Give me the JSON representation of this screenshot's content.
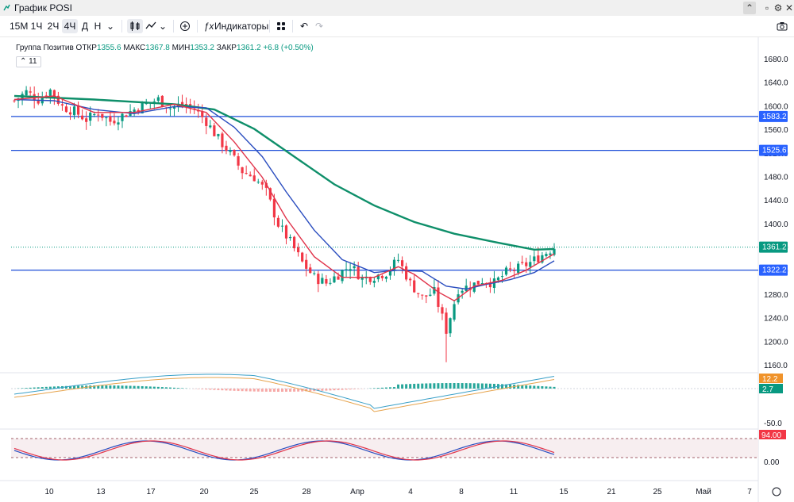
{
  "window": {
    "title": "График POSI"
  },
  "toolbar": {
    "intervals": [
      "15М",
      "1Ч",
      "2Ч",
      "4Ч",
      "Д",
      "Н"
    ],
    "selected_interval": "4Ч",
    "indicators_label": "Индикаторы"
  },
  "legend": {
    "name": "Группа Позитив",
    "open_label": "ОТКР",
    "open": "1355.6",
    "high_label": "МАКС",
    "high": "1367.8",
    "low_label": "МИН",
    "low": "1353.2",
    "close_label": "ЗАКР",
    "close": "1361.2",
    "change": "+6.8 (+0.50%)",
    "ma_badge": "11"
  },
  "colors": {
    "up": "#089981",
    "down": "#f23645",
    "line": "#1e4fd8",
    "ma_long": "#0f8f6a",
    "ma_fast": "#e0334a",
    "ma_mid": "#2a4dbf",
    "price_tag": "#089981",
    "level_tag": "#2962ff"
  },
  "chart_data": [
    {
      "type": "candlestick",
      "symbol": "POSI",
      "interval": "4Ч",
      "ylim": [
        1140,
        1700
      ],
      "y_ticks": [
        1160,
        1200,
        1240,
        1280,
        1320,
        1360,
        1400,
        1440,
        1480,
        1520,
        1560,
        1600,
        1640,
        1680
      ],
      "y_tick_labels": [
        "1160.0",
        "1200.0",
        "1240.0",
        "1280.0",
        "1320.0",
        "1360.0",
        "1400.0",
        "1440.0",
        "1480.0",
        "1520.0",
        "1560.0",
        "1600.0",
        "1640.0",
        "1680.0"
      ],
      "x_labels": [
        "10",
        "13",
        "17",
        "20",
        "25",
        "28",
        "Апр",
        "4",
        "8",
        "11",
        "15",
        "21",
        "25",
        "Май",
        "7"
      ],
      "horizontal_levels": [
        {
          "value": 1583.2,
          "label": "1583.2"
        },
        {
          "value": 1525.6,
          "label": "1525.6"
        },
        {
          "value": 1322.2,
          "label": "1322.2"
        }
      ],
      "last_price": {
        "value": 1361.2,
        "label": "1361.2"
      },
      "close_path": [
        {
          "x": 0,
          "y": 1610
        },
        {
          "x": 3,
          "y": 1625
        },
        {
          "x": 6,
          "y": 1612
        },
        {
          "x": 9,
          "y": 1628
        },
        {
          "x": 12,
          "y": 1600
        },
        {
          "x": 15,
          "y": 1592
        },
        {
          "x": 18,
          "y": 1578
        },
        {
          "x": 21,
          "y": 1590
        },
        {
          "x": 24,
          "y": 1575
        },
        {
          "x": 27,
          "y": 1585
        },
        {
          "x": 30,
          "y": 1595
        },
        {
          "x": 33,
          "y": 1605
        },
        {
          "x": 36,
          "y": 1612
        },
        {
          "x": 39,
          "y": 1598
        },
        {
          "x": 42,
          "y": 1604
        },
        {
          "x": 45,
          "y": 1596
        },
        {
          "x": 48,
          "y": 1575
        },
        {
          "x": 51,
          "y": 1545
        },
        {
          "x": 54,
          "y": 1520
        },
        {
          "x": 57,
          "y": 1490
        },
        {
          "x": 60,
          "y": 1480
        },
        {
          "x": 63,
          "y": 1455
        },
        {
          "x": 66,
          "y": 1400
        },
        {
          "x": 69,
          "y": 1370
        },
        {
          "x": 72,
          "y": 1335
        },
        {
          "x": 75,
          "y": 1310
        },
        {
          "x": 78,
          "y": 1300
        },
        {
          "x": 81,
          "y": 1315
        },
        {
          "x": 84,
          "y": 1330
        },
        {
          "x": 87,
          "y": 1308
        },
        {
          "x": 90,
          "y": 1312
        },
        {
          "x": 93,
          "y": 1318
        },
        {
          "x": 96,
          "y": 1340
        },
        {
          "x": 99,
          "y": 1300
        },
        {
          "x": 102,
          "y": 1275
        },
        {
          "x": 105,
          "y": 1285
        },
        {
          "x": 108,
          "y": 1220
        },
        {
          "x": 111,
          "y": 1290
        },
        {
          "x": 114,
          "y": 1295
        },
        {
          "x": 117,
          "y": 1305
        },
        {
          "x": 120,
          "y": 1300
        },
        {
          "x": 123,
          "y": 1318
        },
        {
          "x": 126,
          "y": 1325
        },
        {
          "x": 129,
          "y": 1335
        },
        {
          "x": 132,
          "y": 1348
        },
        {
          "x": 135,
          "y": 1361.2
        }
      ],
      "ma_long": [
        {
          "x": 0,
          "y": 1618
        },
        {
          "x": 20,
          "y": 1612
        },
        {
          "x": 40,
          "y": 1604
        },
        {
          "x": 50,
          "y": 1595
        },
        {
          "x": 60,
          "y": 1562
        },
        {
          "x": 70,
          "y": 1515
        },
        {
          "x": 80,
          "y": 1468
        },
        {
          "x": 90,
          "y": 1432
        },
        {
          "x": 100,
          "y": 1404
        },
        {
          "x": 110,
          "y": 1384
        },
        {
          "x": 120,
          "y": 1370
        },
        {
          "x": 130,
          "y": 1357
        },
        {
          "x": 135,
          "y": 1358
        }
      ],
      "ma_fast": [
        {
          "x": 0,
          "y": 1612
        },
        {
          "x": 10,
          "y": 1618
        },
        {
          "x": 20,
          "y": 1590
        },
        {
          "x": 30,
          "y": 1590
        },
        {
          "x": 40,
          "y": 1604
        },
        {
          "x": 48,
          "y": 1590
        },
        {
          "x": 55,
          "y": 1540
        },
        {
          "x": 62,
          "y": 1480
        },
        {
          "x": 68,
          "y": 1410
        },
        {
          "x": 75,
          "y": 1345
        },
        {
          "x": 82,
          "y": 1310
        },
        {
          "x": 90,
          "y": 1310
        },
        {
          "x": 96,
          "y": 1328
        },
        {
          "x": 100,
          "y": 1315
        },
        {
          "x": 106,
          "y": 1285
        },
        {
          "x": 110,
          "y": 1270
        },
        {
          "x": 115,
          "y": 1295
        },
        {
          "x": 122,
          "y": 1305
        },
        {
          "x": 128,
          "y": 1322
        },
        {
          "x": 135,
          "y": 1350
        }
      ],
      "ma_mid": [
        {
          "x": 0,
          "y": 1612
        },
        {
          "x": 10,
          "y": 1610
        },
        {
          "x": 20,
          "y": 1595
        },
        {
          "x": 30,
          "y": 1588
        },
        {
          "x": 40,
          "y": 1600
        },
        {
          "x": 48,
          "y": 1598
        },
        {
          "x": 55,
          "y": 1565
        },
        {
          "x": 62,
          "y": 1515
        },
        {
          "x": 68,
          "y": 1455
        },
        {
          "x": 75,
          "y": 1390
        },
        {
          "x": 82,
          "y": 1340
        },
        {
          "x": 90,
          "y": 1318
        },
        {
          "x": 96,
          "y": 1322
        },
        {
          "x": 102,
          "y": 1320
        },
        {
          "x": 108,
          "y": 1295
        },
        {
          "x": 113,
          "y": 1290
        },
        {
          "x": 118,
          "y": 1298
        },
        {
          "x": 124,
          "y": 1306
        },
        {
          "x": 130,
          "y": 1318
        },
        {
          "x": 135,
          "y": 1338
        }
      ]
    },
    {
      "type": "macd",
      "labels": [
        {
          "value": "12.2",
          "color": "#f0932b"
        },
        {
          "value": "2.7",
          "color": "#089981"
        }
      ],
      "y_tick_labels": [
        "-50.0"
      ]
    },
    {
      "type": "stochastic",
      "labels": [
        {
          "value": "94.00",
          "color": "#f23645"
        }
      ],
      "y_tick_labels": [
        "0.00"
      ]
    }
  ]
}
